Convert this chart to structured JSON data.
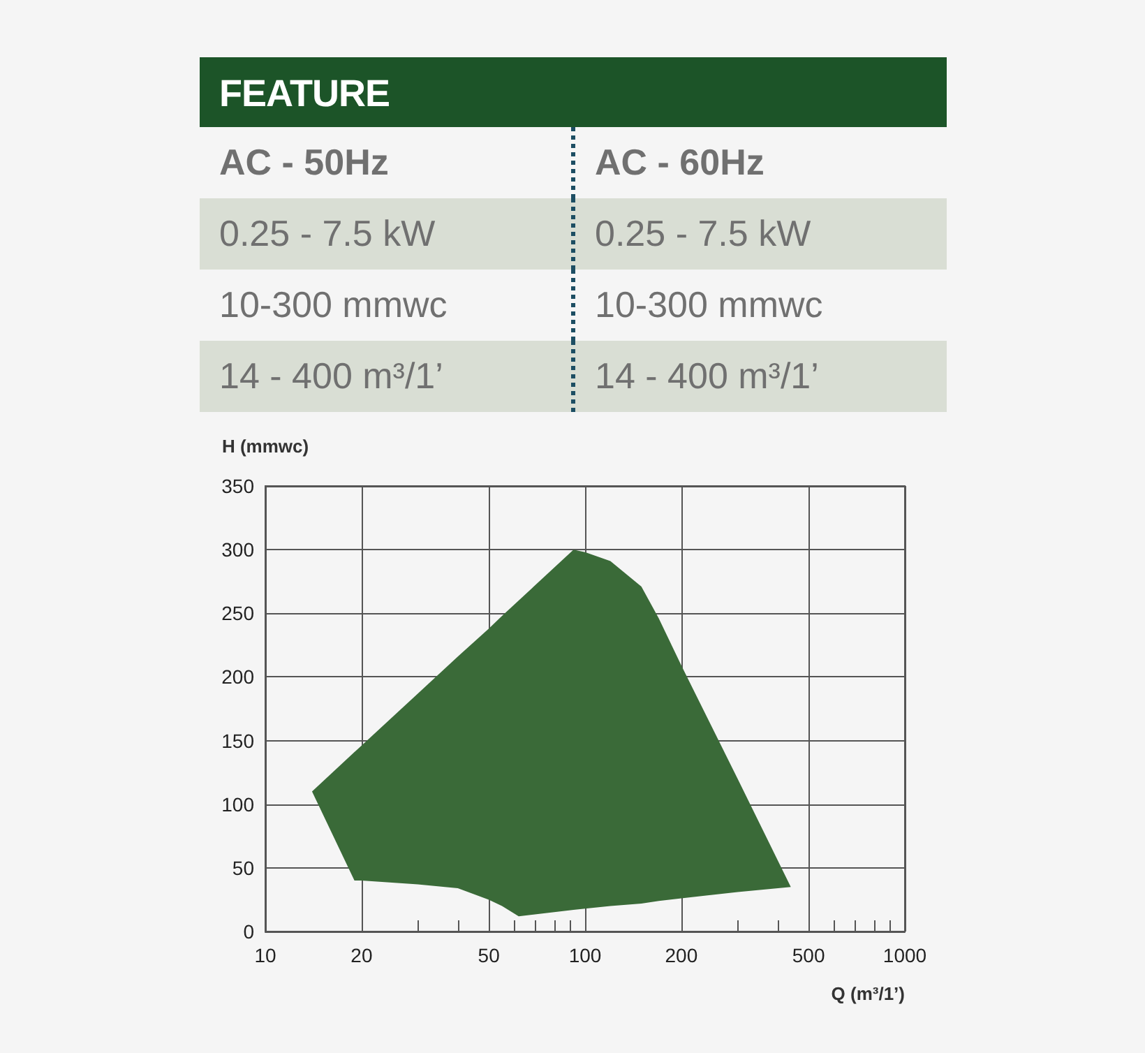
{
  "chart_data": [
    {
      "type": "other",
      "title": "FEATURE",
      "categories": [
        "AC - 50Hz",
        "AC - 60Hz"
      ],
      "cell_labels": [
        [
          "0.25 - 7.5 kW",
          "0.25 - 7.5 kW"
        ],
        [
          "10-300 mmwc",
          "10-300 mmwc"
        ],
        [
          "14 - 400 m³/1’",
          "14 - 400 m³/1’"
        ]
      ]
    },
    {
      "type": "area",
      "xlabel": "Q (m³/1’)",
      "ylabel": "H (mmwc)",
      "log": "x",
      "grid": true,
      "series": [
        {
          "color": "#3a6a38",
          "x": [
            14,
            19,
            20,
            30,
            40,
            50,
            55,
            62,
            92,
            100,
            120,
            150,
            170,
            200,
            300,
            440,
            300,
            200,
            170,
            150,
            120,
            100,
            92,
            62,
            55,
            50,
            40,
            30,
            20,
            19
          ],
          "values": [
            110,
            40,
            40,
            37,
            34,
            25,
            20,
            12,
            17,
            18,
            20,
            22,
            24,
            26,
            31,
            35,
            120,
            209,
            246,
            271,
            291,
            298,
            300,
            260,
            248,
            238,
            216,
            187,
            146,
            141
          ]
        }
      ],
      "xlim": [
        10,
        1000
      ],
      "xticks": [
        10,
        20,
        {
          "value": 30,
          "label": null
        },
        {
          "value": 40,
          "label": null
        },
        50,
        {
          "value": 60,
          "label": null
        },
        {
          "value": 70,
          "label": null
        },
        {
          "value": 80,
          "label": null
        },
        {
          "value": 90,
          "label": null
        },
        100,
        200,
        {
          "value": 300,
          "label": null
        },
        {
          "value": 400,
          "label": null
        },
        500,
        {
          "value": 600,
          "label": null
        },
        {
          "value": 700,
          "label": null
        },
        {
          "value": 800,
          "label": null
        },
        {
          "value": 900,
          "label": null
        },
        1000
      ],
      "ylim": [
        0,
        350
      ],
      "yticks": [
        0,
        50,
        100,
        150,
        200,
        250,
        300,
        350
      ]
    }
  ]
}
